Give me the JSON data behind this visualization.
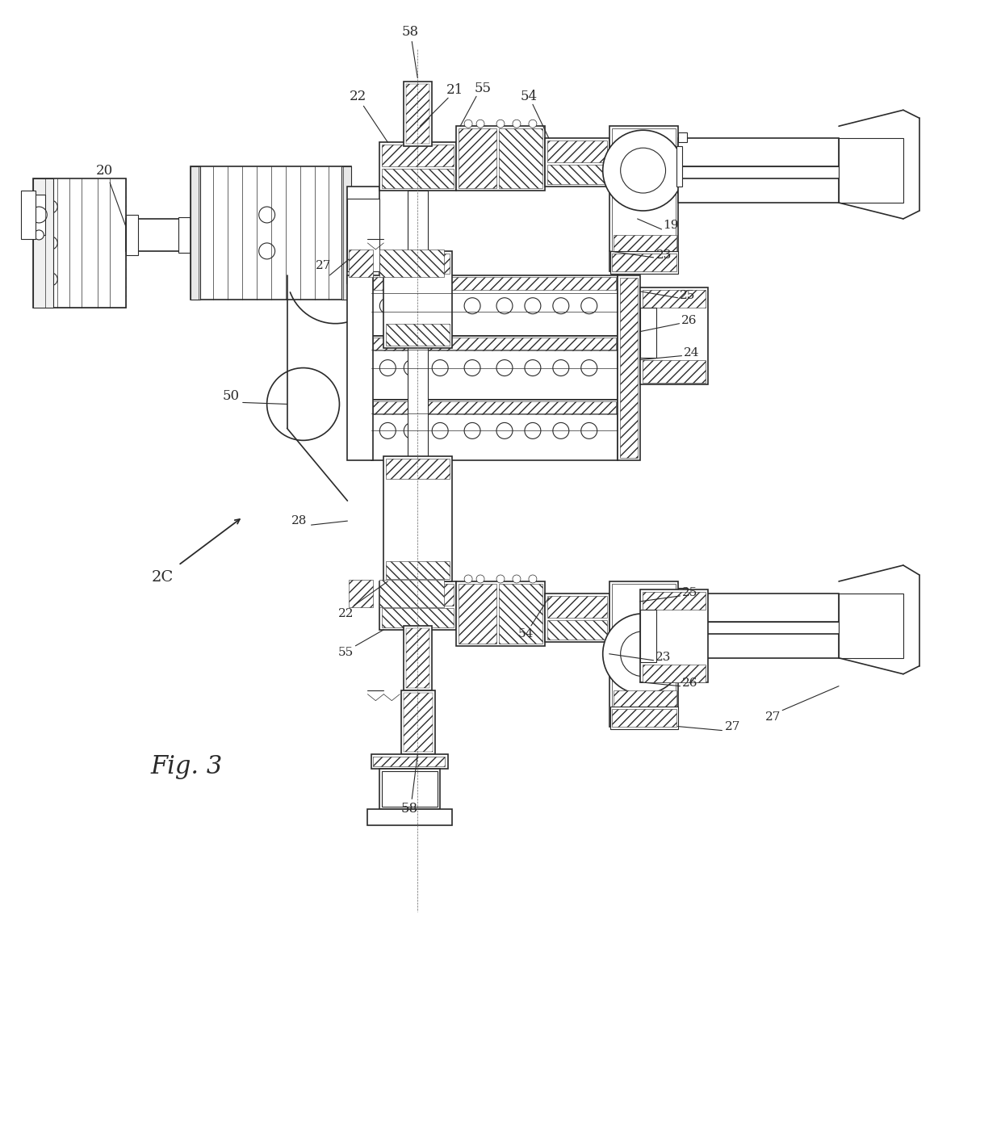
{
  "fig_label": "Fig. 3",
  "background_color": "#ffffff",
  "line_color": "#2a2a2a",
  "fig_width": 12.4,
  "fig_height": 14.13,
  "dpi": 100,
  "annotation_fontsize": 11,
  "figlabel_fontsize": 22
}
